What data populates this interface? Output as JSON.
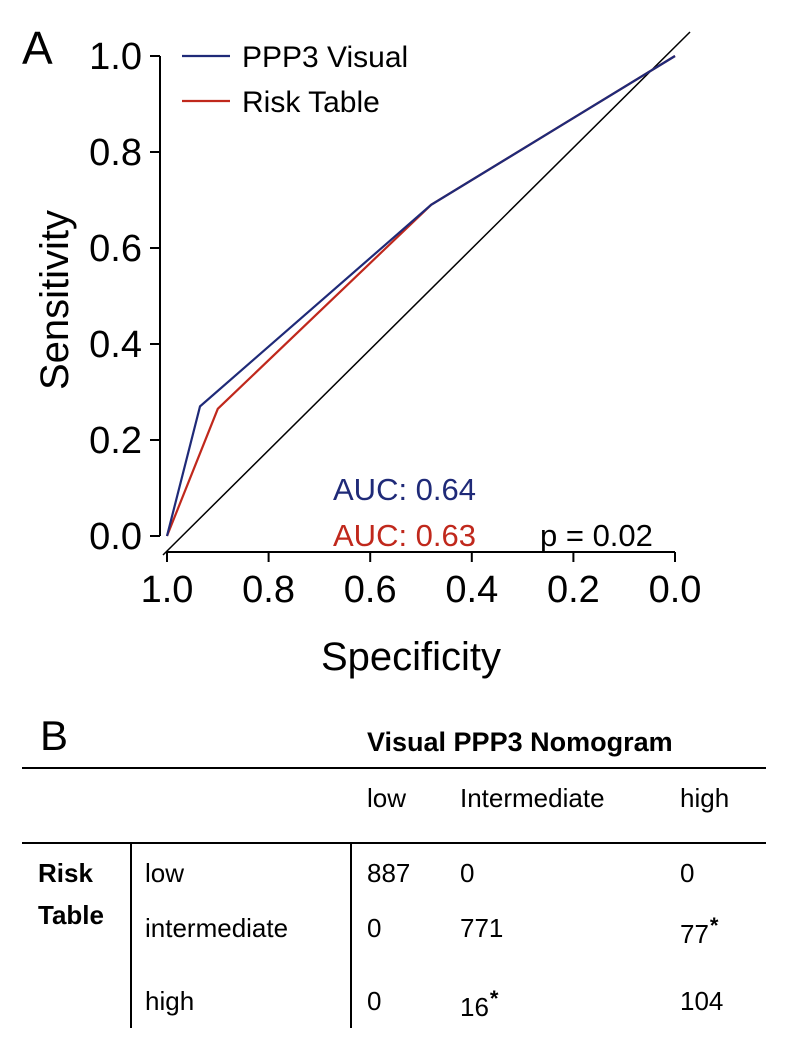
{
  "chart_data": {
    "type": "line",
    "panel_label": "A",
    "xlabel": "Specificity",
    "ylabel": "Sensitivity",
    "xlim": [
      1.0,
      0.0
    ],
    "ylim": [
      0.0,
      1.0
    ],
    "xticks": [
      "1.0",
      "0.8",
      "0.6",
      "0.4",
      "0.2",
      "0.0"
    ],
    "yticks": [
      "0.0",
      "0.2",
      "0.4",
      "0.6",
      "0.8",
      "1.0"
    ],
    "legend_position": "top-left",
    "grid": false,
    "series": [
      {
        "name": "PPP3 Visual",
        "color": "#1f2a78",
        "x": [
          1.0,
          0.935,
          0.48,
          0.0
        ],
        "y": [
          0.0,
          0.27,
          0.69,
          1.0
        ]
      },
      {
        "name": "Risk Table",
        "color": "#c0281c",
        "x": [
          1.0,
          0.9,
          0.48,
          0.0
        ],
        "y": [
          0.0,
          0.265,
          0.69,
          1.0
        ]
      }
    ],
    "reference_line": {
      "x": [
        1.0,
        0.0
      ],
      "y": [
        0.0,
        1.0
      ],
      "color": "#000000"
    },
    "annotations": [
      {
        "text": "AUC: 0.64",
        "color": "#1f2a78"
      },
      {
        "text": "AUC: 0.63",
        "color": "#c0281c"
      },
      {
        "text": "p = 0.02",
        "color": "#000000"
      }
    ]
  },
  "table_b": {
    "panel_label": "B",
    "column_group": "Visual PPP3 Nomogram",
    "columns": [
      "low",
      "Intermediate",
      "high"
    ],
    "row_group_line1": "Risk",
    "row_group_line2": "Table",
    "rows": [
      {
        "label": "low",
        "cells": [
          "887",
          "0",
          "0"
        ]
      },
      {
        "label": "intermediate",
        "cells": [
          "0",
          "771",
          "77"
        ]
      },
      {
        "label": "high",
        "cells": [
          "0",
          "16",
          "104"
        ]
      }
    ],
    "star": "*"
  }
}
